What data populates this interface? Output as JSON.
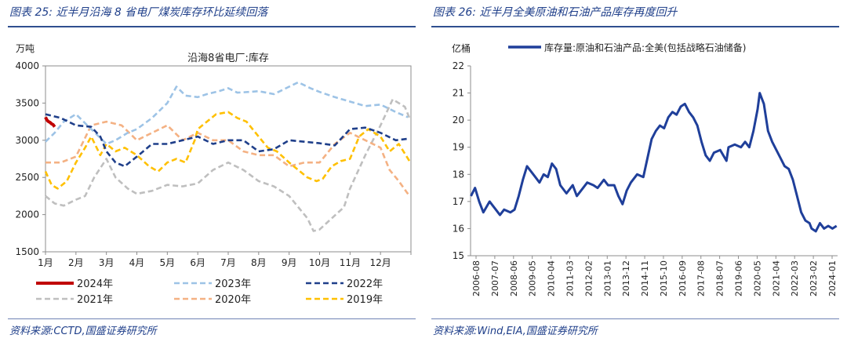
{
  "left": {
    "title": "图表 25:  近半月沿海 8 省电厂煤炭库存环比延续回落",
    "source": "资料来源:CCTD,国盛证券研究所",
    "chart_data": {
      "type": "line",
      "title": "沿海8省电厂:库存",
      "ylabel": "万吨",
      "ylim": [
        1500,
        4000
      ],
      "yticks": [
        1500,
        2000,
        2500,
        3000,
        3500,
        4000
      ],
      "xlim": [
        1,
        13
      ],
      "xticks": [
        "1月",
        "2月",
        "3月",
        "4月",
        "5月",
        "6月",
        "7月",
        "8月",
        "9月",
        "10月",
        "11月",
        "12月"
      ],
      "series": [
        {
          "name": "2024年",
          "color": "#c00000",
          "dash": "solid",
          "x": [
            1,
            1.05,
            1.1,
            1.15,
            1.2,
            1.25,
            1.3
          ],
          "y": [
            3310,
            3270,
            3250,
            3240,
            3220,
            3210,
            3180
          ]
        },
        {
          "name": "2023年",
          "color": "#9dc3e6",
          "dash": "dash",
          "x": [
            1,
            1.3,
            1.6,
            2,
            2.5,
            3,
            3.3,
            3.7,
            4,
            4.5,
            5,
            5.3,
            5.6,
            6,
            6.3,
            6.7,
            7,
            7.3,
            7.7,
            8,
            8.5,
            9,
            9.3,
            9.7,
            10,
            10.5,
            11,
            11.5,
            12,
            12.5,
            12.9
          ],
          "y": [
            2980,
            3100,
            3250,
            3350,
            3150,
            2950,
            3000,
            3100,
            3150,
            3300,
            3500,
            3720,
            3600,
            3580,
            3620,
            3660,
            3700,
            3640,
            3650,
            3660,
            3620,
            3720,
            3780,
            3700,
            3650,
            3580,
            3520,
            3460,
            3480,
            3380,
            3310
          ]
        },
        {
          "name": "2022年",
          "color": "#1f3f8a",
          "dash": "dash",
          "x": [
            1,
            1.5,
            2,
            2.5,
            2.8,
            3,
            3.3,
            3.6,
            4,
            4.5,
            5,
            5.5,
            6,
            6.5,
            7,
            7.5,
            8,
            8.5,
            9,
            9.5,
            10,
            10.5,
            11,
            11.5,
            12,
            12.5,
            12.9
          ],
          "y": [
            3350,
            3300,
            3200,
            3180,
            3050,
            2850,
            2700,
            2650,
            2780,
            2950,
            2950,
            3000,
            3050,
            2950,
            3000,
            3000,
            2850,
            2880,
            3000,
            2980,
            2960,
            2930,
            3150,
            3170,
            3100,
            3000,
            3020
          ]
        },
        {
          "name": "2021年",
          "color": "#bfbfbf",
          "dash": "dash",
          "x": [
            1,
            1.3,
            1.6,
            2,
            2.3,
            2.6,
            3,
            3.3,
            3.7,
            4,
            4.5,
            5,
            5.5,
            6,
            6.5,
            7,
            7.5,
            8,
            8.5,
            9,
            9.3,
            9.6,
            9.8,
            10,
            10.4,
            10.8,
            11,
            11.5,
            12,
            12.4,
            12.8,
            12.95
          ],
          "y": [
            2250,
            2150,
            2120,
            2200,
            2250,
            2500,
            2750,
            2500,
            2350,
            2280,
            2320,
            2400,
            2380,
            2420,
            2600,
            2700,
            2600,
            2450,
            2380,
            2250,
            2100,
            1950,
            1780,
            1800,
            1950,
            2100,
            2350,
            2800,
            3200,
            3550,
            3450,
            3300
          ]
        },
        {
          "name": "2020年",
          "color": "#f4b183",
          "dash": "dash",
          "x": [
            1,
            1.5,
            2,
            2.5,
            3,
            3.5,
            4,
            4.5,
            5,
            5.5,
            6,
            6.5,
            7,
            7.5,
            8,
            8.5,
            9,
            9.5,
            10,
            10.5,
            11,
            11.5,
            12,
            12.3,
            12.6,
            12.95
          ],
          "y": [
            2700,
            2700,
            2780,
            3200,
            3250,
            3200,
            3000,
            3100,
            3200,
            3000,
            3100,
            3000,
            3000,
            2850,
            2800,
            2800,
            2650,
            2700,
            2700,
            2950,
            3100,
            3000,
            2900,
            2600,
            2450,
            2250
          ]
        },
        {
          "name": "2019年",
          "color": "#ffc000",
          "dash": "dash",
          "x": [
            1,
            1.2,
            1.4,
            1.7,
            2,
            2.3,
            2.5,
            2.8,
            3,
            3.3,
            3.6,
            4,
            4.4,
            4.7,
            5,
            5.3,
            5.6,
            5.9,
            6,
            6.3,
            6.6,
            7,
            7.3,
            7.6,
            8,
            8.3,
            8.6,
            9,
            9.3,
            9.6,
            9.9,
            10.1,
            10.4,
            10.7,
            11,
            11.3,
            11.6,
            12,
            12.3,
            12.6,
            12.95
          ],
          "y": [
            2580,
            2400,
            2350,
            2450,
            2700,
            2900,
            3050,
            2800,
            2950,
            2850,
            2900,
            2800,
            2650,
            2580,
            2700,
            2750,
            2700,
            3000,
            3150,
            3250,
            3350,
            3380,
            3300,
            3250,
            3050,
            2900,
            2850,
            2700,
            2600,
            2500,
            2450,
            2480,
            2650,
            2720,
            2750,
            3050,
            3150,
            3050,
            2850,
            2950,
            2720
          ]
        }
      ],
      "legend": "bottom",
      "grid": false
    }
  },
  "right": {
    "title": "图表 26:  近半月全美原油和石油产品库存再度回升",
    "source": "资料来源:Wind,EIA,国盛证券研究所",
    "chart_data": {
      "type": "line",
      "title": "",
      "ylabel": "亿桶",
      "ylim": [
        15,
        22
      ],
      "yticks": [
        15,
        16,
        17,
        18,
        19,
        20,
        21,
        22
      ],
      "xlim": [
        2006.583,
        2024.25
      ],
      "xticks": [
        "2006-08",
        "2007-07",
        "2008-06",
        "2009-05",
        "2010-04",
        "2011-03",
        "2012-02",
        "2013-01",
        "2013-12",
        "2014-11",
        "2015-10",
        "2016-09",
        "2017-08",
        "2018-07",
        "2019-06",
        "2020-05",
        "2021-04",
        "2022-03",
        "2023-02",
        "2024-01"
      ],
      "series": [
        {
          "name": "库存量:原油和石油产品:全美(包括战略石油储备)",
          "color": "#1f3f9a",
          "dash": "solid",
          "x": [
            2006.6,
            2006.8,
            2007.0,
            2007.2,
            2007.5,
            2007.7,
            2008.0,
            2008.2,
            2008.5,
            2008.7,
            2008.9,
            2009.1,
            2009.3,
            2009.5,
            2009.7,
            2009.9,
            2010.1,
            2010.3,
            2010.5,
            2010.7,
            2010.9,
            2011.2,
            2011.5,
            2011.7,
            2012.0,
            2012.2,
            2012.5,
            2012.7,
            2013.0,
            2013.2,
            2013.5,
            2013.7,
            2013.9,
            2014.1,
            2014.3,
            2014.6,
            2014.9,
            2015.1,
            2015.3,
            2015.5,
            2015.7,
            2015.9,
            2016.1,
            2016.3,
            2016.5,
            2016.7,
            2016.9,
            2017.1,
            2017.3,
            2017.5,
            2017.7,
            2017.9,
            2018.1,
            2018.3,
            2018.6,
            2018.9,
            2019.0,
            2019.3,
            2019.6,
            2019.8,
            2020.0,
            2020.2,
            2020.4,
            2020.5,
            2020.7,
            2020.9,
            2021.1,
            2021.3,
            2021.5,
            2021.7,
            2021.9,
            2022.1,
            2022.3,
            2022.5,
            2022.7,
            2022.9,
            2023.0,
            2023.2,
            2023.4,
            2023.6,
            2023.8,
            2024.0,
            2024.2
          ],
          "y": [
            17.2,
            17.5,
            17.0,
            16.6,
            17.0,
            16.8,
            16.5,
            16.7,
            16.6,
            16.7,
            17.2,
            17.8,
            18.3,
            18.1,
            17.9,
            17.7,
            18.0,
            17.9,
            18.4,
            18.2,
            17.6,
            17.3,
            17.6,
            17.2,
            17.5,
            17.7,
            17.6,
            17.5,
            17.8,
            17.6,
            17.6,
            17.2,
            16.9,
            17.4,
            17.7,
            18.0,
            17.9,
            18.6,
            19.3,
            19.6,
            19.8,
            19.7,
            20.1,
            20.3,
            20.2,
            20.5,
            20.6,
            20.3,
            20.1,
            19.8,
            19.2,
            18.7,
            18.5,
            18.8,
            18.9,
            18.5,
            19.0,
            19.1,
            19.0,
            19.2,
            19.0,
            19.6,
            20.4,
            21.0,
            20.6,
            19.6,
            19.2,
            18.9,
            18.6,
            18.3,
            18.2,
            17.8,
            17.2,
            16.6,
            16.3,
            16.2,
            16.0,
            15.9,
            16.2,
            16.0,
            16.1,
            16.0,
            16.1
          ]
        }
      ],
      "legend": "top",
      "grid": false
    }
  }
}
